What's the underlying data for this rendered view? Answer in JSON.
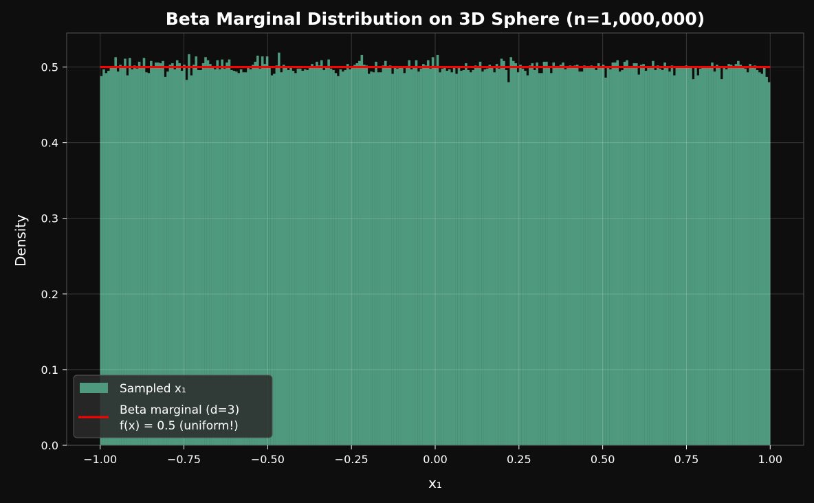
{
  "chart_data": {
    "type": "bar",
    "title": "Beta Marginal Distribution on 3D Sphere (n=1,000,000)",
    "xlabel": "x₁",
    "ylabel": "Density",
    "xlim": [
      -1.1,
      1.1
    ],
    "ylim": [
      0,
      0.545
    ],
    "x_ticks": [
      -1.0,
      -0.75,
      -0.5,
      -0.25,
      0.0,
      0.25,
      0.5,
      0.75,
      1.0
    ],
    "x_tick_labels": [
      "−1.00",
      "−0.75",
      "−0.50",
      "−0.25",
      "0.00",
      "0.25",
      "0.50",
      "0.75",
      "1.00"
    ],
    "y_ticks": [
      0.0,
      0.1,
      0.2,
      0.3,
      0.4,
      0.5
    ],
    "y_tick_labels": [
      "0.0",
      "0.1",
      "0.2",
      "0.3",
      "0.4",
      "0.5"
    ],
    "grid": true,
    "legend_position": "bottom-left",
    "histogram": {
      "name": "Sampled x₁",
      "color": "#4f9a7e",
      "bin_range": [
        -1.0,
        1.0
      ],
      "density": [
        0.488,
        0.497,
        0.492,
        0.495,
        0.501,
        0.499,
        0.513,
        0.494,
        0.503,
        0.499,
        0.511,
        0.489,
        0.512,
        0.497,
        0.502,
        0.498,
        0.507,
        0.499,
        0.512,
        0.493,
        0.492,
        0.508,
        0.501,
        0.506,
        0.506,
        0.505,
        0.508,
        0.487,
        0.494,
        0.503,
        0.505,
        0.497,
        0.509,
        0.505,
        0.495,
        0.503,
        0.483,
        0.517,
        0.489,
        0.503,
        0.514,
        0.496,
        0.496,
        0.505,
        0.513,
        0.509,
        0.504,
        0.499,
        0.497,
        0.509,
        0.497,
        0.51,
        0.498,
        0.506,
        0.51,
        0.496,
        0.495,
        0.494,
        0.492,
        0.497,
        0.493,
        0.493,
        0.499,
        0.497,
        0.503,
        0.507,
        0.515,
        0.498,
        0.514,
        0.504,
        0.514,
        0.501,
        0.489,
        0.491,
        0.502,
        0.519,
        0.493,
        0.503,
        0.5,
        0.496,
        0.501,
        0.495,
        0.492,
        0.498,
        0.498,
        0.495,
        0.497,
        0.496,
        0.499,
        0.504,
        0.499,
        0.507,
        0.502,
        0.509,
        0.496,
        0.5,
        0.51,
        0.498,
        0.496,
        0.492,
        0.488,
        0.497,
        0.494,
        0.496,
        0.504,
        0.497,
        0.499,
        0.503,
        0.505,
        0.508,
        0.516,
        0.503,
        0.502,
        0.491,
        0.494,
        0.493,
        0.507,
        0.493,
        0.493,
        0.502,
        0.508,
        0.499,
        0.502,
        0.491,
        0.5,
        0.498,
        0.5,
        0.5,
        0.492,
        0.5,
        0.509,
        0.497,
        0.5,
        0.509,
        0.494,
        0.498,
        0.504,
        0.502,
        0.509,
        0.498,
        0.513,
        0.5,
        0.516,
        0.493,
        0.498,
        0.501,
        0.495,
        0.497,
        0.493,
        0.5,
        0.491,
        0.5,
        0.495,
        0.496,
        0.505,
        0.496,
        0.493,
        0.496,
        0.502,
        0.5,
        0.507,
        0.494,
        0.497,
        0.498,
        0.503,
        0.499,
        0.493,
        0.504,
        0.498,
        0.511,
        0.508,
        0.496,
        0.48,
        0.513,
        0.508,
        0.505,
        0.493,
        0.503,
        0.498,
        0.495,
        0.489,
        0.502,
        0.505,
        0.496,
        0.506,
        0.492,
        0.492,
        0.507,
        0.507,
        0.499,
        0.492,
        0.506,
        0.499,
        0.499,
        0.503,
        0.506,
        0.497,
        0.5,
        0.502,
        0.5,
        0.502,
        0.503,
        0.494,
        0.494,
        0.502,
        0.501,
        0.5,
        0.502,
        0.5,
        0.496,
        0.505,
        0.5,
        0.503,
        0.486,
        0.501,
        0.497,
        0.506,
        0.506,
        0.509,
        0.494,
        0.496,
        0.507,
        0.509,
        0.501,
        0.5,
        0.505,
        0.505,
        0.49,
        0.503,
        0.504,
        0.495,
        0.5,
        0.501,
        0.508,
        0.496,
        0.502,
        0.498,
        0.496,
        0.506,
        0.5,
        0.494,
        0.502,
        0.489,
        0.5,
        0.501,
        0.5,
        0.5,
        0.502,
        0.5,
        0.501,
        0.484,
        0.5,
        0.489,
        0.498,
        0.5,
        0.501,
        0.5,
        0.5,
        0.506,
        0.494,
        0.503,
        0.5,
        0.484,
        0.5,
        0.497,
        0.504,
        0.503,
        0.5,
        0.504,
        0.508,
        0.503,
        0.5,
        0.498,
        0.493,
        0.504,
        0.499,
        0.502,
        0.496,
        0.493,
        0.491,
        0.499,
        0.487,
        0.48
      ]
    },
    "series": [
      {
        "name": "Beta marginal (d=3)\nf(x) = 0.5 (uniform!)",
        "legend_lines": [
          "Beta marginal (d=3)",
          "f(x) = 0.5 (uniform!)"
        ],
        "color": "#ff0000",
        "x": [
          -1.0,
          1.0
        ],
        "y": [
          0.5,
          0.5
        ]
      }
    ]
  }
}
